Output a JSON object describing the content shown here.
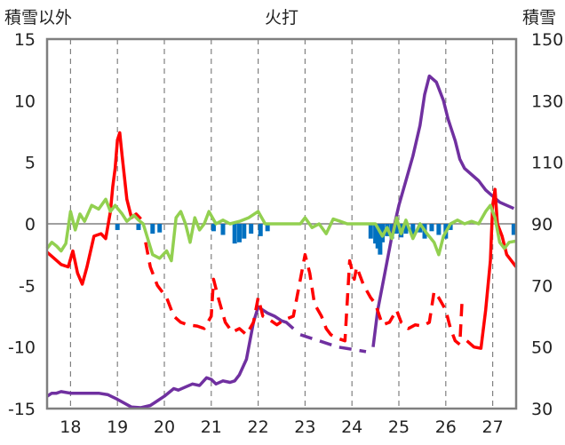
{
  "chart_data": {
    "type": "line",
    "title": "火打",
    "ylabel_left": "積雪以外",
    "ylabel_right": "積雪",
    "ylim_left": [
      -15,
      15
    ],
    "yticks_left": [
      15,
      10,
      5,
      0,
      -5,
      -10,
      -15
    ],
    "ylim_right": [
      30,
      150
    ],
    "yticks_right": [
      150,
      130,
      110,
      90,
      70,
      50,
      30
    ],
    "xlim": [
      17.5,
      27.5
    ],
    "xticks": [
      18,
      19,
      20,
      21,
      22,
      23,
      24,
      25,
      26,
      27
    ],
    "grid": "dashed vertical at each day",
    "series": [
      {
        "axis": "right",
        "color": "#7030A0",
        "style": "solid",
        "points": [
          [
            17.5,
            34
          ],
          [
            17.6,
            35
          ],
          [
            17.7,
            35
          ],
          [
            17.8,
            35.5
          ],
          [
            18.0,
            35
          ],
          [
            18.3,
            35
          ],
          [
            18.6,
            35
          ],
          [
            18.8,
            34.5
          ],
          [
            19.0,
            33
          ],
          [
            19.3,
            30.5
          ],
          [
            19.5,
            30.3
          ],
          [
            19.7,
            31
          ],
          [
            19.8,
            32
          ],
          [
            20.0,
            34
          ],
          [
            20.2,
            36.5
          ],
          [
            20.3,
            36
          ],
          [
            20.45,
            37
          ],
          [
            20.6,
            38
          ],
          [
            20.75,
            37.5
          ],
          [
            20.9,
            40
          ],
          [
            21.0,
            39.5
          ],
          [
            21.1,
            38
          ],
          [
            21.25,
            39
          ],
          [
            21.4,
            38.5
          ],
          [
            21.5,
            39
          ],
          [
            21.6,
            41
          ],
          [
            21.75,
            46
          ],
          [
            21.9,
            58
          ],
          [
            22.0,
            63
          ],
          [
            22.1,
            62
          ],
          [
            22.2,
            61
          ],
          [
            22.35,
            60
          ],
          [
            22.5,
            58.5
          ],
          [
            22.6,
            58
          ],
          [
            22.75,
            56
          ]
        ]
      },
      {
        "axis": "right",
        "color": "#7030A0",
        "style": "dashed",
        "points": [
          [
            22.9,
            54
          ],
          [
            23.1,
            53
          ],
          [
            23.3,
            52
          ],
          [
            23.5,
            51
          ],
          [
            23.7,
            50
          ],
          [
            23.9,
            49.5
          ],
          [
            24.1,
            49
          ],
          [
            24.3,
            48.5
          ]
        ]
      },
      {
        "axis": "right",
        "color": "#7030A0",
        "style": "solid",
        "points": [
          [
            24.45,
            50
          ],
          [
            24.55,
            62
          ],
          [
            24.7,
            74
          ],
          [
            24.85,
            86
          ],
          [
            25.0,
            96
          ],
          [
            25.15,
            104
          ],
          [
            25.3,
            112
          ],
          [
            25.45,
            122
          ],
          [
            25.55,
            132
          ],
          [
            25.65,
            138
          ],
          [
            25.8,
            136
          ],
          [
            25.95,
            130
          ],
          [
            26.05,
            124
          ],
          [
            26.2,
            117
          ],
          [
            26.3,
            111
          ],
          [
            26.4,
            108
          ],
          [
            26.55,
            106
          ],
          [
            26.7,
            104
          ],
          [
            26.85,
            101
          ],
          [
            27.0,
            99
          ],
          [
            27.15,
            97
          ],
          [
            27.3,
            96
          ],
          [
            27.45,
            95
          ]
        ]
      },
      {
        "axis": "left",
        "color": "#FF0000",
        "style": "solid",
        "points": [
          [
            17.5,
            -2.3
          ],
          [
            17.65,
            -2.8
          ],
          [
            17.8,
            -3.3
          ],
          [
            17.95,
            -3.5
          ],
          [
            18.05,
            -2.2
          ],
          [
            18.15,
            -4.0
          ],
          [
            18.25,
            -4.9
          ],
          [
            18.35,
            -3.5
          ],
          [
            18.5,
            -1.0
          ],
          [
            18.65,
            -0.8
          ],
          [
            18.75,
            -1.2
          ],
          [
            18.85,
            1.0
          ],
          [
            18.9,
            3.0
          ],
          [
            18.95,
            4.5
          ],
          [
            19.0,
            6.8
          ],
          [
            19.05,
            7.4
          ],
          [
            19.1,
            5.5
          ],
          [
            19.2,
            2.0
          ],
          [
            19.3,
            0.5
          ],
          [
            19.4,
            0.8
          ],
          [
            19.5,
            0.4
          ]
        ]
      },
      {
        "axis": "left",
        "color": "#FF0000",
        "style": "dashed",
        "points": [
          [
            19.6,
            -1.5
          ],
          [
            19.7,
            -3.5
          ],
          [
            19.85,
            -5.0
          ],
          [
            20.05,
            -6.0
          ],
          [
            20.2,
            -7.5
          ],
          [
            20.35,
            -8.0
          ],
          [
            20.5,
            -8.2
          ],
          [
            20.7,
            -8.3
          ],
          [
            20.85,
            -8.5
          ],
          [
            21.0,
            -7.5
          ],
          [
            21.05,
            -4.5
          ],
          [
            21.15,
            -6.0
          ],
          [
            21.3,
            -8.0
          ],
          [
            21.45,
            -8.8
          ],
          [
            21.6,
            -8.5
          ],
          [
            21.75,
            -9.0
          ],
          [
            21.9,
            -8.0
          ],
          [
            22.0,
            -6.0
          ],
          [
            22.1,
            -7.5
          ],
          [
            22.25,
            -7.8
          ],
          [
            22.4,
            -8.2
          ],
          [
            22.55,
            -7.8
          ],
          [
            22.75,
            -7.5
          ],
          [
            23.0,
            -2.5
          ],
          [
            23.1,
            -4.0
          ],
          [
            23.2,
            -6.5
          ],
          [
            23.35,
            -7.5
          ],
          [
            23.45,
            -8.5
          ],
          [
            23.55,
            -9.0
          ],
          [
            23.7,
            -9.3
          ],
          [
            23.85,
            -9.5
          ],
          [
            23.95,
            -3.0
          ],
          [
            24.05,
            -4.5
          ],
          [
            24.1,
            -3.5
          ],
          [
            24.25,
            -5.0
          ],
          [
            24.4,
            -6.0
          ],
          [
            24.5,
            -6.5
          ],
          [
            24.65,
            -8.2
          ],
          [
            24.8,
            -8.0
          ],
          [
            24.95,
            -7.0
          ],
          [
            25.05,
            -8.0
          ],
          [
            25.2,
            -8.5
          ],
          [
            25.35,
            -8.2
          ],
          [
            25.5,
            -8.3
          ],
          [
            25.65,
            -8.0
          ],
          [
            25.75,
            -5.5
          ],
          [
            25.85,
            -6.0
          ],
          [
            26.0,
            -7.0
          ],
          [
            26.1,
            -8.5
          ],
          [
            26.2,
            -9.5
          ],
          [
            26.3,
            -9.8
          ],
          [
            26.35,
            -6.0
          ]
        ]
      },
      {
        "axis": "left",
        "color": "#FF0000",
        "style": "solid",
        "points": [
          [
            26.45,
            -9.5
          ],
          [
            26.6,
            -10.0
          ],
          [
            26.75,
            -10.1
          ],
          [
            26.85,
            -7.0
          ],
          [
            26.95,
            -3.0
          ],
          [
            27.0,
            1.5
          ],
          [
            27.05,
            2.8
          ],
          [
            27.1,
            0.0
          ],
          [
            27.2,
            -1.0
          ],
          [
            27.3,
            -2.5
          ],
          [
            27.4,
            -3.0
          ],
          [
            27.5,
            -3.5
          ]
        ]
      },
      {
        "axis": "left",
        "color": "#92D050",
        "style": "solid",
        "points": [
          [
            17.5,
            -2.0
          ],
          [
            17.6,
            -1.5
          ],
          [
            17.7,
            -1.8
          ],
          [
            17.8,
            -2.2
          ],
          [
            17.9,
            -1.6
          ],
          [
            18.0,
            1.0
          ],
          [
            18.1,
            -0.5
          ],
          [
            18.2,
            0.8
          ],
          [
            18.3,
            0.2
          ],
          [
            18.45,
            1.5
          ],
          [
            18.6,
            1.2
          ],
          [
            18.75,
            2.0
          ],
          [
            18.85,
            1.0
          ],
          [
            18.95,
            1.5
          ],
          [
            19.1,
            0.8
          ],
          [
            19.2,
            0.2
          ],
          [
            19.35,
            0.7
          ],
          [
            19.45,
            0.3
          ],
          [
            19.55,
            0.0
          ],
          [
            19.75,
            -2.5
          ],
          [
            19.9,
            -2.8
          ],
          [
            20.05,
            -2.2
          ],
          [
            20.15,
            -3.0
          ],
          [
            20.25,
            0.5
          ],
          [
            20.35,
            1.0
          ],
          [
            20.45,
            0.0
          ],
          [
            20.55,
            -1.5
          ],
          [
            20.65,
            0.5
          ],
          [
            20.75,
            -0.5
          ],
          [
            20.85,
            0.0
          ],
          [
            20.95,
            1.0
          ],
          [
            21.1,
            0.0
          ],
          [
            21.25,
            0.3
          ],
          [
            21.4,
            0.0
          ],
          [
            21.6,
            0.2
          ],
          [
            21.8,
            0.5
          ],
          [
            22.0,
            1.0
          ],
          [
            22.15,
            0.0
          ],
          [
            22.3,
            0.0
          ],
          [
            22.6,
            0.0
          ],
          [
            22.9,
            0.0
          ],
          [
            23.0,
            0.5
          ],
          [
            23.15,
            -0.3
          ],
          [
            23.3,
            0.0
          ],
          [
            23.45,
            -0.8
          ],
          [
            23.6,
            0.4
          ],
          [
            23.75,
            0.2
          ],
          [
            23.9,
            0.0
          ],
          [
            24.05,
            0.0
          ],
          [
            24.25,
            0.0
          ],
          [
            24.5,
            0.0
          ],
          [
            24.65,
            -1.0
          ],
          [
            24.75,
            -0.3
          ],
          [
            24.85,
            -1.2
          ],
          [
            24.95,
            0.5
          ],
          [
            25.05,
            -0.8
          ],
          [
            25.15,
            0.3
          ],
          [
            25.3,
            -1.2
          ],
          [
            25.45,
            0.0
          ],
          [
            25.6,
            -0.8
          ],
          [
            25.75,
            -1.5
          ],
          [
            25.85,
            -2.5
          ],
          [
            25.95,
            -1.0
          ],
          [
            26.1,
            0.0
          ],
          [
            26.25,
            0.3
          ],
          [
            26.4,
            0.0
          ],
          [
            26.55,
            0.2
          ],
          [
            26.7,
            0.0
          ],
          [
            26.85,
            1.0
          ],
          [
            26.95,
            1.5
          ],
          [
            27.05,
            0.5
          ],
          [
            27.15,
            -1.5
          ],
          [
            27.25,
            -2.0
          ],
          [
            27.35,
            -1.5
          ],
          [
            27.5,
            -1.4
          ]
        ]
      },
      {
        "axis": "left",
        "color": "#0070C0",
        "type": "bar",
        "points": [
          [
            19.0,
            -0.5
          ],
          [
            19.45,
            -0.5
          ],
          [
            19.75,
            -0.8
          ],
          [
            19.9,
            -0.7
          ],
          [
            21.05,
            -0.6
          ],
          [
            21.25,
            -0.9
          ],
          [
            21.5,
            -1.6
          ],
          [
            21.6,
            -1.5
          ],
          [
            21.7,
            -1.2
          ],
          [
            21.85,
            -0.8
          ],
          [
            22.05,
            -1.0
          ],
          [
            22.2,
            -0.6
          ],
          [
            24.4,
            -1.2
          ],
          [
            24.5,
            -1.6
          ],
          [
            24.55,
            -2.0
          ],
          [
            24.6,
            -2.5
          ],
          [
            24.65,
            -1.5
          ],
          [
            24.75,
            -1.0
          ],
          [
            24.85,
            -1.2
          ],
          [
            24.95,
            -0.8
          ],
          [
            25.05,
            -1.1
          ],
          [
            25.15,
            -0.8
          ],
          [
            25.3,
            -0.9
          ],
          [
            25.45,
            -0.7
          ],
          [
            25.55,
            -1.2
          ],
          [
            25.7,
            -0.6
          ],
          [
            25.85,
            -0.9
          ],
          [
            26.0,
            -1.2
          ],
          [
            26.1,
            -0.5
          ],
          [
            27.45,
            -0.9
          ]
        ]
      }
    ]
  }
}
